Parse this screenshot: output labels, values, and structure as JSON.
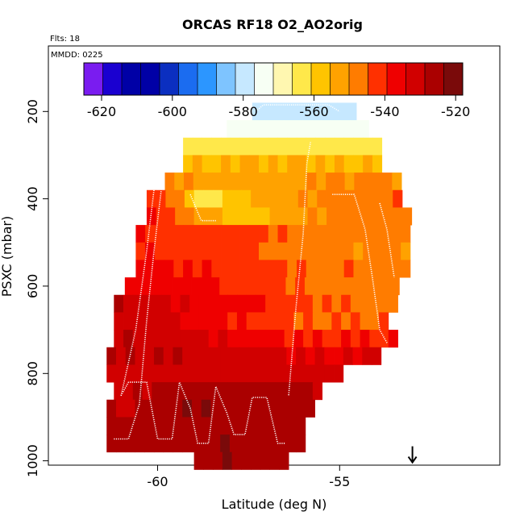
{
  "chart_data": {
    "type": "heatmap",
    "title": "ORCAS RF18 O2_AO2orig",
    "annotations": {
      "flights": "Flts: 18",
      "date": "MMDD: 0225"
    },
    "xlabel": "Latitude (deg N)",
    "ylabel": "PSXC (mbar)",
    "xlim": [
      -63,
      -50.6
    ],
    "ylim": [
      1010,
      50
    ],
    "y_reversed": true,
    "xticks": [
      -60,
      -55
    ],
    "xtick_labels": [
      "-60",
      "-55"
    ],
    "yticks": [
      200,
      400,
      600,
      800,
      1000
    ],
    "ytick_labels": [
      "200",
      "400",
      "600",
      "800",
      "1000"
    ],
    "colorbar": {
      "ticks": [
        -620,
        -600,
        -580,
        -560,
        -540,
        -520
      ],
      "tick_labels": [
        "-620",
        "-600",
        "-580",
        "-560",
        "-540",
        "-520"
      ],
      "range": [
        -625,
        -518
      ],
      "colors": [
        "#7a1cf0",
        "#1a00d0",
        "#0000a6",
        "#0000a6",
        "#0b2fc0",
        "#1b6cf0",
        "#2c96ff",
        "#7ec4ff",
        "#c6e8ff",
        "#f7fff4",
        "#fff7b0",
        "#ffe84a",
        "#ffc400",
        "#ffa200",
        "#ff7c00",
        "#ff3000",
        "#ef0000",
        "#d10000",
        "#aa0000",
        "#7a0a0a"
      ]
    },
    "cell_size": {
      "dlat": 0.26,
      "dp": 20
    },
    "rows": [
      {
        "p": 200,
        "lat0": -57.4,
        "lat1": -54.7,
        "anchors": [
          [
            -57.4,
            -581
          ],
          [
            -54.7,
            -580
          ]
        ]
      },
      {
        "p": 240,
        "lat0": -58.1,
        "lat1": -54.4,
        "anchors": [
          [
            -58.1,
            -572
          ],
          [
            -56.5,
            -574
          ],
          [
            -54.4,
            -573
          ]
        ]
      },
      {
        "p": 280,
        "lat0": -59.3,
        "lat1": -53.9,
        "anchors": [
          [
            -59.3,
            -563
          ],
          [
            -56.3,
            -565
          ],
          [
            -53.9,
            -563
          ]
        ]
      },
      {
        "p": 320,
        "lat0": -59.3,
        "lat1": -53.9,
        "anchors": [
          [
            -59.3,
            -556
          ],
          [
            -57.0,
            -555
          ],
          [
            -53.9,
            -556
          ]
        ]
      },
      {
        "p": 360,
        "lat0": -59.8,
        "lat1": -53.4,
        "anchors": [
          [
            -59.8,
            -550
          ],
          [
            -57.0,
            -552
          ],
          [
            -55.0,
            -549
          ],
          [
            -53.4,
            -550
          ]
        ]
      },
      {
        "p": 400,
        "lat0": -60.3,
        "lat1": -53.4,
        "anchors": [
          [
            -60.3,
            -540
          ],
          [
            -59.4,
            -548
          ],
          [
            -58.8,
            -565
          ],
          [
            -58.0,
            -560
          ],
          [
            -57.0,
            -553
          ],
          [
            -55.0,
            -548
          ],
          [
            -53.4,
            -545
          ]
        ]
      },
      {
        "p": 440,
        "lat0": -60.3,
        "lat1": -53.2,
        "anchors": [
          [
            -60.3,
            -535
          ],
          [
            -59.4,
            -545
          ],
          [
            -58.6,
            -553
          ],
          [
            -57.5,
            -560
          ],
          [
            -56.5,
            -552
          ],
          [
            -54.5,
            -548
          ],
          [
            -53.2,
            -547
          ]
        ]
      },
      {
        "p": 480,
        "lat0": -60.6,
        "lat1": -53.2,
        "anchors": [
          [
            -60.6,
            -540
          ],
          [
            -59.0,
            -542
          ],
          [
            -57.5,
            -543
          ],
          [
            -55.5,
            -547
          ],
          [
            -53.2,
            -548
          ]
        ]
      },
      {
        "p": 520,
        "lat0": -60.6,
        "lat1": -53.2,
        "anchors": [
          [
            -60.6,
            -540
          ],
          [
            -58.0,
            -543
          ],
          [
            -56.0,
            -548
          ],
          [
            -53.2,
            -550
          ]
        ]
      },
      {
        "p": 560,
        "lat0": -60.6,
        "lat1": -53.2,
        "anchors": [
          [
            -60.6,
            -538
          ],
          [
            -58.0,
            -540
          ],
          [
            -56.0,
            -545
          ],
          [
            -53.2,
            -547
          ]
        ]
      },
      {
        "p": 600,
        "lat0": -60.9,
        "lat1": -53.4,
        "anchors": [
          [
            -60.9,
            -535
          ],
          [
            -58.0,
            -540
          ],
          [
            -56.0,
            -546
          ],
          [
            -53.4,
            -550
          ]
        ]
      },
      {
        "p": 640,
        "lat0": -61.2,
        "lat1": -53.4,
        "anchors": [
          [
            -61.2,
            -528
          ],
          [
            -59.0,
            -535
          ],
          [
            -57.5,
            -538
          ],
          [
            -56.0,
            -543
          ],
          [
            -53.4,
            -547
          ]
        ]
      },
      {
        "p": 680,
        "lat0": -61.2,
        "lat1": -53.7,
        "anchors": [
          [
            -61.2,
            -530
          ],
          [
            -59.0,
            -535
          ],
          [
            -57.5,
            -540
          ],
          [
            -56.0,
            -545
          ],
          [
            -53.7,
            -545
          ]
        ]
      },
      {
        "p": 720,
        "lat0": -61.2,
        "lat1": -53.4,
        "anchors": [
          [
            -61.2,
            -528
          ],
          [
            -59.0,
            -532
          ],
          [
            -57.5,
            -537
          ],
          [
            -55.5,
            -540
          ],
          [
            -53.4,
            -540
          ]
        ]
      },
      {
        "p": 760,
        "lat0": -61.4,
        "lat1": -53.9,
        "anchors": [
          [
            -61.4,
            -528
          ],
          [
            -59.0,
            -530
          ],
          [
            -57.0,
            -533
          ],
          [
            -55.0,
            -535
          ],
          [
            -53.9,
            -533
          ]
        ]
      },
      {
        "p": 800,
        "lat0": -61.4,
        "lat1": -54.9,
        "anchors": [
          [
            -61.4,
            -530
          ],
          [
            -59.0,
            -532
          ],
          [
            -57.0,
            -533
          ],
          [
            -54.9,
            -530
          ]
        ]
      },
      {
        "p": 840,
        "lat0": -61.2,
        "lat1": -55.6,
        "anchors": [
          [
            -61.2,
            -530
          ],
          [
            -60.0,
            -528
          ],
          [
            -59.0,
            -525
          ],
          [
            -58.0,
            -525
          ],
          [
            -56.8,
            -527
          ],
          [
            -55.6,
            -528
          ]
        ]
      },
      {
        "p": 880,
        "lat0": -61.4,
        "lat1": -55.9,
        "anchors": [
          [
            -61.4,
            -530
          ],
          [
            -60.0,
            -527
          ],
          [
            -59.0,
            -523
          ],
          [
            -58.0,
            -524
          ],
          [
            -56.8,
            -526
          ],
          [
            -55.9,
            -528
          ]
        ]
      },
      {
        "p": 920,
        "lat0": -61.4,
        "lat1": -56.1,
        "anchors": [
          [
            -61.4,
            -528
          ],
          [
            -60.0,
            -527
          ],
          [
            -59.0,
            -525
          ],
          [
            -58.0,
            -525
          ],
          [
            -56.8,
            -526
          ],
          [
            -56.1,
            -527
          ]
        ]
      },
      {
        "p": 960,
        "lat0": -61.4,
        "lat1": -56.1,
        "anchors": [
          [
            -61.4,
            -528
          ],
          [
            -60.0,
            -527
          ],
          [
            -58.8,
            -524
          ],
          [
            -57.5,
            -525
          ],
          [
            -56.1,
            -526
          ]
        ]
      },
      {
        "p": 1000,
        "lat0": -59.0,
        "lat1": -56.4,
        "anchors": [
          [
            -59.0,
            -525
          ],
          [
            -57.5,
            -524
          ],
          [
            -56.4,
            -526
          ]
        ]
      }
    ],
    "flight_track": [
      [
        -61.2,
        950
      ],
      [
        -60.8,
        950
      ],
      [
        -60.5,
        870
      ],
      [
        -60.3,
        680
      ],
      [
        -60.1,
        520
      ],
      [
        -59.9,
        380
      ],
      [
        -60.1,
        380
      ],
      [
        -60.3,
        520
      ],
      [
        -60.6,
        700
      ],
      [
        -61.0,
        850
      ],
      [
        -60.8,
        820
      ],
      [
        -60.3,
        820
      ],
      [
        -60.0,
        950
      ],
      [
        -59.6,
        950
      ],
      [
        -59.4,
        820
      ],
      [
        -59.1,
        880
      ],
      [
        -58.9,
        960
      ],
      [
        -58.6,
        960
      ],
      [
        -58.4,
        830
      ],
      [
        -58.1,
        890
      ],
      [
        -57.9,
        940
      ],
      [
        -57.6,
        940
      ],
      [
        -57.4,
        855
      ],
      [
        -57.0,
        855
      ],
      [
        -56.7,
        960
      ],
      [
        -56.5,
        960
      ],
      [
        -56.4,
        850
      ],
      [
        -56.2,
        650
      ],
      [
        -56.0,
        480
      ],
      [
        -55.9,
        320
      ],
      [
        -55.8,
        270
      ],
      [
        -59.1,
        390
      ],
      [
        -58.8,
        450
      ],
      [
        -58.4,
        450
      ],
      [
        -57.3,
        200
      ],
      [
        -57.1,
        185
      ],
      [
        -55.8,
        185
      ],
      [
        -55.3,
        185
      ],
      [
        -55.0,
        200
      ],
      [
        -55.2,
        390
      ],
      [
        -54.6,
        390
      ],
      [
        -54.3,
        470
      ],
      [
        -54.1,
        580
      ],
      [
        -53.9,
        700
      ],
      [
        -53.7,
        730
      ],
      [
        -53.9,
        410
      ],
      [
        -53.7,
        470
      ],
      [
        -53.5,
        580
      ]
    ],
    "track_segments": [
      [
        0,
        5
      ],
      [
        6,
        25
      ],
      [
        26,
        30
      ],
      [
        31,
        33
      ],
      [
        34,
        38
      ],
      [
        39,
        44
      ],
      [
        45,
        47
      ]
    ],
    "arrow_marker": {
      "lat": -53.0,
      "p": 1000,
      "direction": "down"
    }
  }
}
